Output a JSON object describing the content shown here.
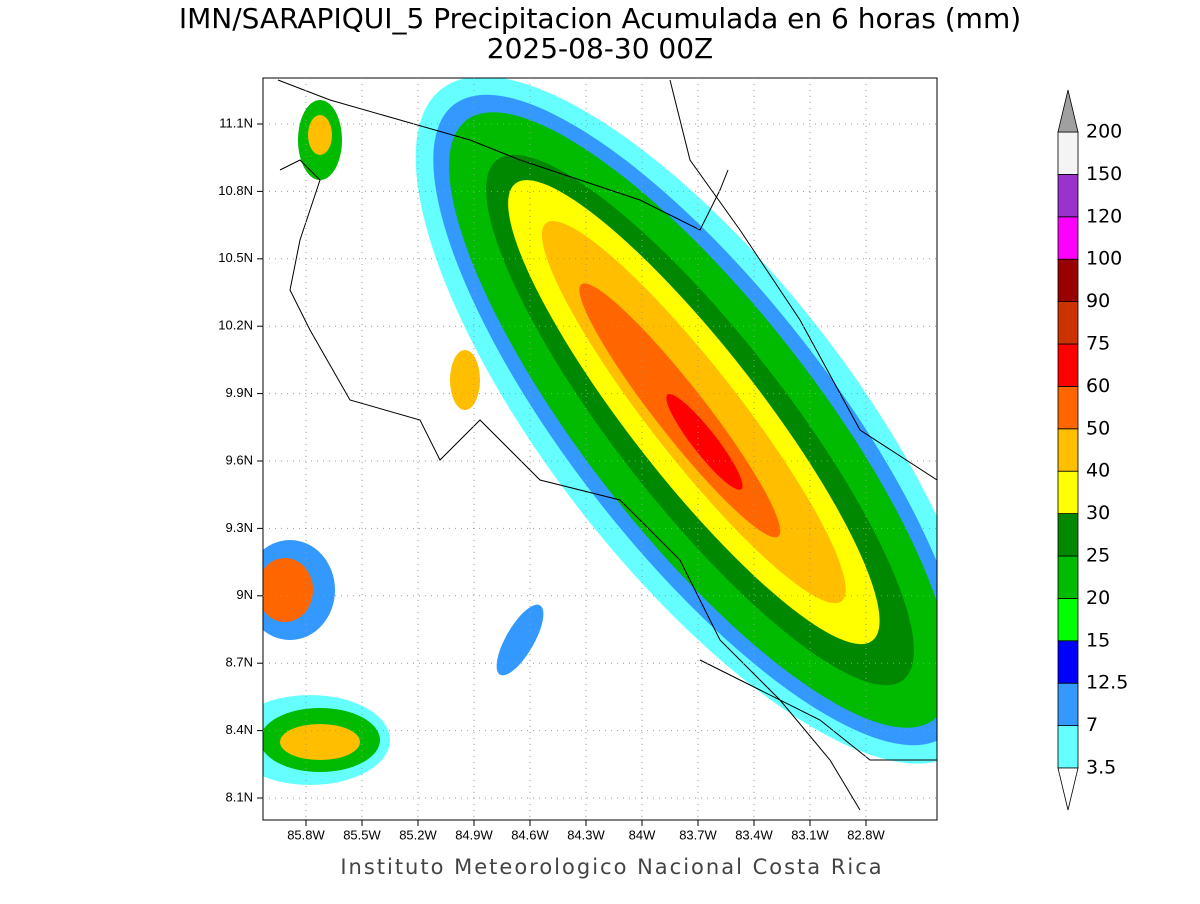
{
  "title": "IMN/SARAPIQUI_5 Precipitacion Acumulada en 6 horas (mm)",
  "subtitle": "2025-08-30 00Z",
  "footer": "Instituto Meteorologico Nacional Costa Rica",
  "map": {
    "lat_ticks": [
      {
        "value": 11.1,
        "label": "11.1N"
      },
      {
        "value": 10.8,
        "label": "10.8N"
      },
      {
        "value": 10.5,
        "label": "10.5N"
      },
      {
        "value": 10.2,
        "label": "10.2N"
      },
      {
        "value": 9.9,
        "label": "9.9N"
      },
      {
        "value": 9.6,
        "label": "9.6N"
      },
      {
        "value": 9.3,
        "label": "9.3N"
      },
      {
        "value": 9,
        "label": "9N"
      },
      {
        "value": 8.7,
        "label": "8.7N"
      },
      {
        "value": 8.4,
        "label": "8.4N"
      },
      {
        "value": 8.1,
        "label": "8.1N"
      }
    ],
    "lon_ticks": [
      {
        "value": -85.8,
        "label": "85.8W"
      },
      {
        "value": -85.5,
        "label": "85.5W"
      },
      {
        "value": -85.2,
        "label": "85.2W"
      },
      {
        "value": -84.9,
        "label": "84.9W"
      },
      {
        "value": -84.6,
        "label": "84.6W"
      },
      {
        "value": -84.3,
        "label": "84.3W"
      },
      {
        "value": -84,
        "label": "84W"
      },
      {
        "value": -83.7,
        "label": "83.7W"
      },
      {
        "value": -83.4,
        "label": "83.4W"
      },
      {
        "value": -83.1,
        "label": "83.1W"
      },
      {
        "value": -82.8,
        "label": "82.8W"
      }
    ]
  },
  "colorbar": {
    "levels": [
      3.5,
      7,
      12.5,
      15,
      20,
      25,
      30,
      40,
      50,
      60,
      75,
      90,
      100,
      120,
      150,
      200
    ],
    "colors": [
      "#66ffff",
      "#3399ff",
      "#0000ff",
      "#00ff00",
      "#00bb00",
      "#008800",
      "#ffff00",
      "#ffbf00",
      "#ff6600",
      "#ff0000",
      "#cc3300",
      "#990000",
      "#ff00ff",
      "#9933cc",
      "#f4f4f4"
    ],
    "under_color": "#ffffff",
    "over_color": "#a0a0a0"
  }
}
